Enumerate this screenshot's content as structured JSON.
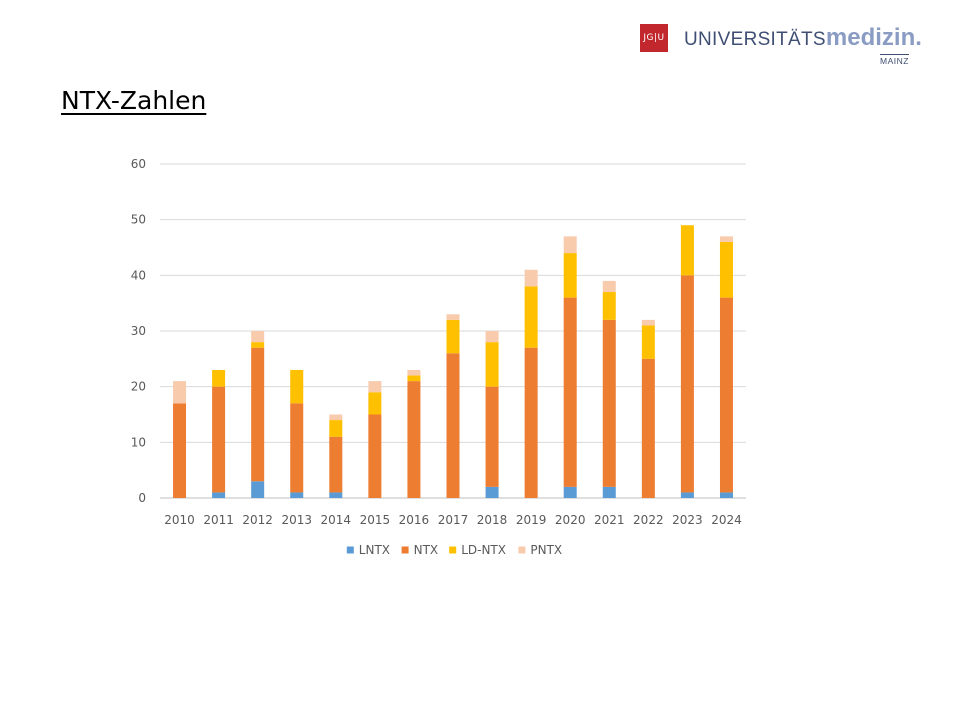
{
  "header": {
    "logo_box": "JG|U",
    "logo_uni": "UNIVERSITÄTS",
    "logo_med": "medizin.",
    "logo_mainz": "MAINZ"
  },
  "title": "NTX-Zahlen",
  "chart_data": {
    "type": "bar",
    "stacked": true,
    "title": "",
    "xlabel": "",
    "ylabel": "",
    "ylim": [
      0,
      60
    ],
    "yticks": [
      0,
      10,
      20,
      30,
      40,
      50,
      60
    ],
    "grid": true,
    "legend_position": "bottom",
    "categories": [
      "2010",
      "2011",
      "2012",
      "2013",
      "2014",
      "2015",
      "2016",
      "2017",
      "2018",
      "2019",
      "2020",
      "2021",
      "2022",
      "2023",
      "2024"
    ],
    "series": [
      {
        "name": "LNTX",
        "color": "#5b9bd5",
        "values": [
          0,
          1,
          3,
          1,
          1,
          0,
          0,
          0,
          2,
          0,
          2,
          2,
          0,
          1,
          1
        ]
      },
      {
        "name": "NTX",
        "color": "#ed7d31",
        "values": [
          17,
          19,
          24,
          16,
          10,
          15,
          21,
          26,
          18,
          27,
          34,
          30,
          25,
          39,
          35
        ]
      },
      {
        "name": "LD-NTX",
        "color": "#ffc000",
        "values": [
          0,
          3,
          1,
          6,
          3,
          4,
          1,
          6,
          8,
          11,
          8,
          5,
          6,
          9,
          10
        ]
      },
      {
        "name": "PNTX",
        "color": "#f8cbad",
        "values": [
          4,
          0,
          2,
          0,
          1,
          2,
          1,
          1,
          2,
          3,
          3,
          2,
          1,
          0,
          1
        ]
      }
    ]
  }
}
